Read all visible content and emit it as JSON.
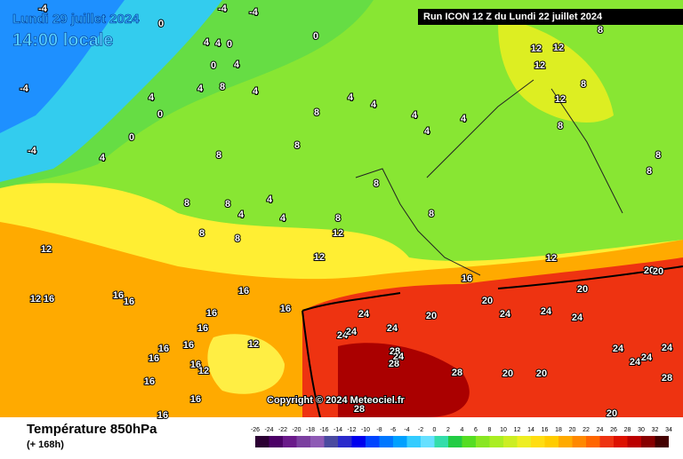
{
  "header": {
    "date": "Lundi 29 juillet 2024",
    "time": "14:00 locale",
    "run": "Run ICON 12 Z du Lundi 22 juillet 2024"
  },
  "map": {
    "copyright": "Copyright © 2024 Meteociel.fr",
    "contour_labels": [
      0,
      -4,
      -4,
      -4,
      -4,
      -4,
      0,
      4,
      4,
      0,
      0,
      4,
      8,
      4,
      4,
      4,
      0,
      0,
      4,
      8,
      4,
      4,
      4,
      4,
      4,
      8,
      8,
      8,
      8,
      4,
      4,
      4,
      8,
      8,
      8,
      12,
      12,
      12,
      12,
      16,
      16,
      16,
      16,
      16,
      16,
      16,
      16,
      16,
      16,
      16,
      12,
      16,
      16,
      16,
      12,
      16,
      24,
      20,
      20,
      24,
      24,
      24,
      20,
      20,
      20,
      24,
      24,
      24,
      28,
      28,
      24,
      28,
      20,
      20,
      24,
      24,
      24,
      24,
      28,
      28,
      20,
      12,
      12,
      12,
      12,
      8,
      8,
      8,
      8,
      8,
      12,
      8,
      8
    ]
  },
  "legend": {
    "title": "Température 850hPa",
    "subtitle": "(+ 168h)",
    "ticks": [
      -26,
      -24,
      -22,
      -20,
      -18,
      -16,
      -14,
      -12,
      -10,
      -8,
      -6,
      -4,
      -2,
      0,
      2,
      4,
      6,
      8,
      10,
      12,
      14,
      16,
      18,
      20,
      22,
      24,
      26,
      28,
      30,
      32,
      34
    ],
    "colors": [
      "#2b0033",
      "#4b0066",
      "#6a1a8a",
      "#7b3fa0",
      "#8e5ab5",
      "#4a4aa0",
      "#2a2acc",
      "#0000ee",
      "#0044ff",
      "#0077ff",
      "#00a0ff",
      "#33ccff",
      "#66e0ff",
      "#33ddaa",
      "#22cc44",
      "#55dd22",
      "#88e622",
      "#aaee22",
      "#ccee22",
      "#eeee22",
      "#ffdd11",
      "#ffcc00",
      "#ffaa00",
      "#ff8800",
      "#ff6600",
      "#ee3311",
      "#dd1100",
      "#bb0000",
      "#880000",
      "#440000"
    ]
  }
}
